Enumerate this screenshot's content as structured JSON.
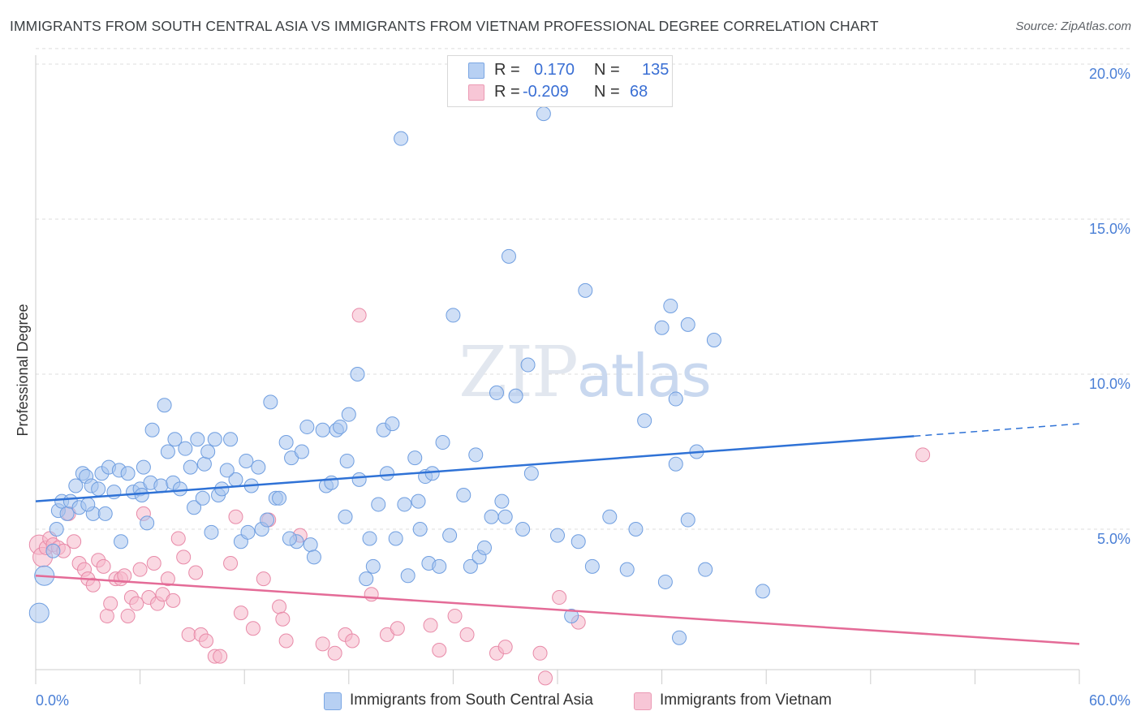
{
  "title": "IMMIGRANTS FROM SOUTH CENTRAL ASIA VS IMMIGRANTS FROM VIETNAM PROFESSIONAL DEGREE CORRELATION CHART",
  "source": "Source: ZipAtlas.com",
  "watermark": "ZIPatlas",
  "legend": {
    "rows": [
      {
        "r_label": "R =",
        "r_value": "0.170",
        "n_label": "N =",
        "n_value": "135"
      },
      {
        "r_label": "R =",
        "r_value": "-0.209",
        "n_label": "N =",
        "n_value": "68"
      }
    ]
  },
  "bottom_legend": [
    {
      "label": "Immigrants from South Central Asia"
    },
    {
      "label": "Immigrants from Vietnam"
    }
  ],
  "colors": {
    "blue_fill": "#a8c4ef",
    "blue_stroke": "#6f9ee0",
    "blue_line": "#2f72d6",
    "pink_fill": "#f5b8cb",
    "pink_stroke": "#e88aa8",
    "pink_line": "#e46b97",
    "tick_text": "#4a7fd6",
    "grid": "#dddddd"
  },
  "chart_data": {
    "type": "scatter",
    "title": "IMMIGRANTS FROM SOUTH CENTRAL ASIA VS IMMIGRANTS FROM VIETNAM PROFESSIONAL DEGREE CORRELATION CHART",
    "xlabel": "",
    "ylabel": "Professional Degree",
    "xlim": [
      0,
      60
    ],
    "ylim": [
      0,
      20
    ],
    "x_tick_labels": [
      "0.0%",
      "60.0%"
    ],
    "y_ticks": [
      5,
      10,
      15,
      20
    ],
    "y_tick_labels": [
      "5.0%",
      "10.0%",
      "15.0%",
      "20.0%"
    ],
    "grid": true,
    "legend_position": "top-center",
    "series": [
      {
        "name": "Immigrants from South Central Asia",
        "color": "blue",
        "trend": {
          "x0": 0,
          "y0": 5.9,
          "x1": 50.5,
          "y1": 8.0,
          "dash_to_x": 60,
          "dash_to_y": 8.4
        },
        "points": [
          [
            0.2,
            2.3
          ],
          [
            0.5,
            3.5
          ],
          [
            1.0,
            4.3
          ],
          [
            1.2,
            5.0
          ],
          [
            1.3,
            5.6
          ],
          [
            1.5,
            5.9
          ],
          [
            1.8,
            5.5
          ],
          [
            2.0,
            5.9
          ],
          [
            2.3,
            6.4
          ],
          [
            2.5,
            5.7
          ],
          [
            2.7,
            6.8
          ],
          [
            2.9,
            6.7
          ],
          [
            3.2,
            6.4
          ],
          [
            3.3,
            5.5
          ],
          [
            3.6,
            6.3
          ],
          [
            3.8,
            6.8
          ],
          [
            4.0,
            5.5
          ],
          [
            4.2,
            7.0
          ],
          [
            4.5,
            6.2
          ],
          [
            4.8,
            6.9
          ],
          [
            4.9,
            4.6
          ],
          [
            5.3,
            6.8
          ],
          [
            5.6,
            6.2
          ],
          [
            6.0,
            6.3
          ],
          [
            6.2,
            7.0
          ],
          [
            6.4,
            5.2
          ],
          [
            6.6,
            6.5
          ],
          [
            6.7,
            8.2
          ],
          [
            7.2,
            6.4
          ],
          [
            7.4,
            9.0
          ],
          [
            7.6,
            7.5
          ],
          [
            7.9,
            6.5
          ],
          [
            8.0,
            7.9
          ],
          [
            8.3,
            6.3
          ],
          [
            8.6,
            7.6
          ],
          [
            8.9,
            7.0
          ],
          [
            9.1,
            5.7
          ],
          [
            9.3,
            7.9
          ],
          [
            9.7,
            7.1
          ],
          [
            9.9,
            7.5
          ],
          [
            10.1,
            4.9
          ],
          [
            10.3,
            7.9
          ],
          [
            10.5,
            6.1
          ],
          [
            10.7,
            6.3
          ],
          [
            11.2,
            7.9
          ],
          [
            11.5,
            6.6
          ],
          [
            11.8,
            4.6
          ],
          [
            12.1,
            7.2
          ],
          [
            12.4,
            6.4
          ],
          [
            12.8,
            7.0
          ],
          [
            13.0,
            5.0
          ],
          [
            13.3,
            5.3
          ],
          [
            13.5,
            9.1
          ],
          [
            13.8,
            6.0
          ],
          [
            14.0,
            6.0
          ],
          [
            14.4,
            7.8
          ],
          [
            14.7,
            7.3
          ],
          [
            15.0,
            4.6
          ],
          [
            15.3,
            7.5
          ],
          [
            15.6,
            8.3
          ],
          [
            15.8,
            4.5
          ],
          [
            16.0,
            4.1
          ],
          [
            16.5,
            8.2
          ],
          [
            16.7,
            6.4
          ],
          [
            17.0,
            6.5
          ],
          [
            17.3,
            8.2
          ],
          [
            17.5,
            8.3
          ],
          [
            17.8,
            5.4
          ],
          [
            18.0,
            8.7
          ],
          [
            18.5,
            10.0
          ],
          [
            18.6,
            6.6
          ],
          [
            19.0,
            3.4
          ],
          [
            19.2,
            4.7
          ],
          [
            19.4,
            3.8
          ],
          [
            19.7,
            5.8
          ],
          [
            20.0,
            8.2
          ],
          [
            20.2,
            6.8
          ],
          [
            20.5,
            8.4
          ],
          [
            20.7,
            4.7
          ],
          [
            21.0,
            17.6
          ],
          [
            21.2,
            5.8
          ],
          [
            21.4,
            3.5
          ],
          [
            21.8,
            7.3
          ],
          [
            22.1,
            5.0
          ],
          [
            22.4,
            6.7
          ],
          [
            22.6,
            3.9
          ],
          [
            22.8,
            6.8
          ],
          [
            23.2,
            3.8
          ],
          [
            23.4,
            7.8
          ],
          [
            23.8,
            4.8
          ],
          [
            24.0,
            11.9
          ],
          [
            24.6,
            6.1
          ],
          [
            25.0,
            3.8
          ],
          [
            25.3,
            7.4
          ],
          [
            25.5,
            4.1
          ],
          [
            25.8,
            4.4
          ],
          [
            26.2,
            5.4
          ],
          [
            26.5,
            9.4
          ],
          [
            26.8,
            5.9
          ],
          [
            27.0,
            5.4
          ],
          [
            27.2,
            13.8
          ],
          [
            27.6,
            9.3
          ],
          [
            28.0,
            5.0
          ],
          [
            28.3,
            10.3
          ],
          [
            28.5,
            6.8
          ],
          [
            29.2,
            18.4
          ],
          [
            30.0,
            4.8
          ],
          [
            30.8,
            2.2
          ],
          [
            31.2,
            4.6
          ],
          [
            31.6,
            12.7
          ],
          [
            32.0,
            3.8
          ],
          [
            33.0,
            5.4
          ],
          [
            34.0,
            3.7
          ],
          [
            34.5,
            5.0
          ],
          [
            35.0,
            8.5
          ],
          [
            36.2,
            3.3
          ],
          [
            36.5,
            12.2
          ],
          [
            36.0,
            11.5
          ],
          [
            36.8,
            9.2
          ],
          [
            36.8,
            7.1
          ],
          [
            37.0,
            1.5
          ],
          [
            37.5,
            5.3
          ],
          [
            37.5,
            11.6
          ],
          [
            38.0,
            7.5
          ],
          [
            38.5,
            3.7
          ],
          [
            39.0,
            11.1
          ],
          [
            41.8,
            3.0
          ],
          [
            12.2,
            4.9
          ],
          [
            9.6,
            6.0
          ],
          [
            6.1,
            6.1
          ],
          [
            3.0,
            5.8
          ],
          [
            17.9,
            7.2
          ],
          [
            14.6,
            4.7
          ],
          [
            22.0,
            5.9
          ],
          [
            11.0,
            6.9
          ]
        ]
      },
      {
        "name": "Immigrants from Vietnam",
        "color": "pink",
        "trend": {
          "x0": 0,
          "y0": 3.5,
          "x1": 60,
          "y1": 1.3
        },
        "points": [
          [
            0.2,
            4.5
          ],
          [
            0.4,
            4.1
          ],
          [
            0.6,
            4.4
          ],
          [
            0.8,
            4.7
          ],
          [
            1.0,
            4.5
          ],
          [
            1.3,
            4.4
          ],
          [
            1.6,
            4.3
          ],
          [
            1.9,
            5.5
          ],
          [
            2.2,
            4.6
          ],
          [
            2.5,
            3.9
          ],
          [
            2.8,
            3.7
          ],
          [
            3.0,
            3.4
          ],
          [
            3.3,
            3.2
          ],
          [
            3.6,
            4.0
          ],
          [
            3.9,
            3.8
          ],
          [
            4.1,
            2.2
          ],
          [
            4.3,
            2.6
          ],
          [
            4.6,
            3.4
          ],
          [
            4.9,
            3.4
          ],
          [
            5.1,
            3.5
          ],
          [
            5.3,
            2.2
          ],
          [
            5.5,
            2.8
          ],
          [
            5.8,
            2.6
          ],
          [
            6.0,
            3.7
          ],
          [
            6.2,
            5.5
          ],
          [
            6.5,
            2.8
          ],
          [
            6.8,
            3.9
          ],
          [
            7.0,
            2.6
          ],
          [
            7.3,
            2.9
          ],
          [
            7.6,
            3.4
          ],
          [
            7.9,
            2.7
          ],
          [
            8.2,
            4.7
          ],
          [
            8.5,
            4.1
          ],
          [
            8.8,
            1.6
          ],
          [
            9.2,
            3.6
          ],
          [
            9.5,
            1.6
          ],
          [
            9.8,
            1.4
          ],
          [
            10.3,
            0.9
          ],
          [
            10.6,
            0.9
          ],
          [
            11.2,
            3.9
          ],
          [
            11.5,
            5.4
          ],
          [
            11.8,
            2.3
          ],
          [
            12.5,
            1.8
          ],
          [
            13.1,
            3.4
          ],
          [
            13.4,
            5.3
          ],
          [
            14.0,
            2.5
          ],
          [
            14.2,
            2.1
          ],
          [
            14.4,
            1.4
          ],
          [
            15.2,
            4.8
          ],
          [
            16.5,
            1.3
          ],
          [
            17.2,
            1.0
          ],
          [
            17.8,
            1.6
          ],
          [
            18.2,
            1.4
          ],
          [
            18.6,
            11.9
          ],
          [
            19.3,
            2.9
          ],
          [
            20.2,
            1.6
          ],
          [
            20.8,
            1.8
          ],
          [
            22.7,
            1.9
          ],
          [
            23.2,
            1.1
          ],
          [
            24.1,
            2.2
          ],
          [
            24.8,
            1.6
          ],
          [
            26.5,
            1.0
          ],
          [
            27.0,
            1.2
          ],
          [
            29.0,
            1.0
          ],
          [
            29.3,
            0.2
          ],
          [
            30.1,
            2.8
          ],
          [
            31.2,
            2.0
          ],
          [
            51.0,
            7.4
          ]
        ]
      }
    ]
  }
}
